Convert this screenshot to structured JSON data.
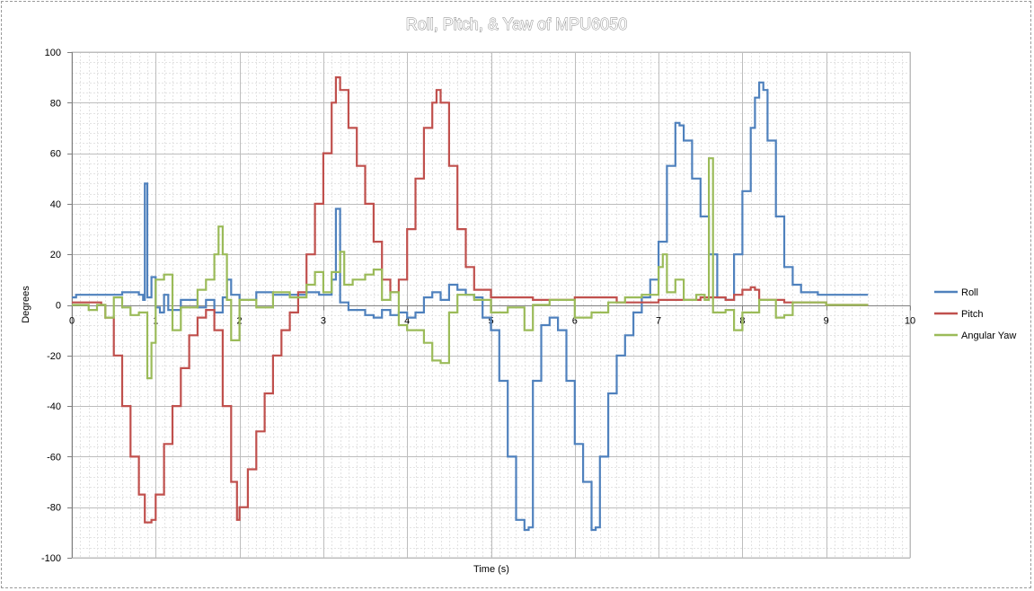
{
  "chart_data": {
    "type": "line",
    "title": "Roll, Pitch, & Yaw of MPU6050",
    "xlabel": "Time (s)",
    "ylabel": "Degrees",
    "xlim": [
      0,
      10
    ],
    "ylim": [
      -100,
      100
    ],
    "x_ticks": [
      "0",
      "1",
      "2",
      "3",
      "4",
      "5",
      "6",
      "7",
      "8",
      "9",
      "10"
    ],
    "y_ticks": [
      "-100",
      "-80",
      "-60",
      "-40",
      "-20",
      "0",
      "20",
      "40",
      "60",
      "80",
      "100"
    ],
    "grid": true,
    "minor_grid": true,
    "legend_position": "right",
    "series": [
      {
        "name": "Roll",
        "color": "#4f81bd",
        "points": [
          [
            0,
            3
          ],
          [
            0.05,
            4
          ],
          [
            0.3,
            4
          ],
          [
            0.35,
            4
          ],
          [
            0.6,
            5
          ],
          [
            0.75,
            5
          ],
          [
            0.8,
            4
          ],
          [
            0.85,
            2
          ],
          [
            0.87,
            48
          ],
          [
            0.9,
            3
          ],
          [
            0.95,
            11
          ],
          [
            1.0,
            -1
          ],
          [
            1.05,
            -3
          ],
          [
            1.1,
            4
          ],
          [
            1.15,
            -2
          ],
          [
            1.3,
            2
          ],
          [
            1.5,
            -1
          ],
          [
            1.6,
            2
          ],
          [
            1.7,
            -3
          ],
          [
            1.8,
            3
          ],
          [
            1.85,
            10
          ],
          [
            1.9,
            4
          ],
          [
            2.0,
            2
          ],
          [
            2.2,
            5
          ],
          [
            2.4,
            4
          ],
          [
            2.6,
            4
          ],
          [
            2.8,
            5
          ],
          [
            2.95,
            4
          ],
          [
            3.1,
            10
          ],
          [
            3.15,
            38
          ],
          [
            3.2,
            1
          ],
          [
            3.3,
            -2
          ],
          [
            3.5,
            -4
          ],
          [
            3.6,
            -5
          ],
          [
            3.7,
            -2
          ],
          [
            3.8,
            -4
          ],
          [
            3.9,
            -3
          ],
          [
            4.0,
            -5
          ],
          [
            4.1,
            -3
          ],
          [
            4.2,
            3
          ],
          [
            4.3,
            5
          ],
          [
            4.4,
            2
          ],
          [
            4.5,
            8
          ],
          [
            4.6,
            6
          ],
          [
            4.7,
            4
          ],
          [
            4.8,
            3
          ],
          [
            4.9,
            -5
          ],
          [
            5.0,
            -10
          ],
          [
            5.1,
            -30
          ],
          [
            5.2,
            -60
          ],
          [
            5.3,
            -85
          ],
          [
            5.4,
            -89
          ],
          [
            5.45,
            -88
          ],
          [
            5.5,
            -30
          ],
          [
            5.6,
            -8
          ],
          [
            5.7,
            -5
          ],
          [
            5.8,
            -10
          ],
          [
            5.9,
            -30
          ],
          [
            6.0,
            -55
          ],
          [
            6.1,
            -70
          ],
          [
            6.2,
            -89
          ],
          [
            6.25,
            -88
          ],
          [
            6.3,
            -60
          ],
          [
            6.4,
            -35
          ],
          [
            6.5,
            -20
          ],
          [
            6.6,
            -12
          ],
          [
            6.7,
            -3
          ],
          [
            6.8,
            3
          ],
          [
            6.9,
            10
          ],
          [
            7.0,
            25
          ],
          [
            7.1,
            55
          ],
          [
            7.2,
            72
          ],
          [
            7.25,
            71
          ],
          [
            7.3,
            65
          ],
          [
            7.4,
            50
          ],
          [
            7.5,
            35
          ],
          [
            7.6,
            20
          ],
          [
            7.7,
            3
          ],
          [
            7.8,
            2
          ],
          [
            7.9,
            20
          ],
          [
            8.0,
            45
          ],
          [
            8.1,
            70
          ],
          [
            8.15,
            82
          ],
          [
            8.2,
            88
          ],
          [
            8.25,
            85
          ],
          [
            8.3,
            65
          ],
          [
            8.4,
            35
          ],
          [
            8.5,
            15
          ],
          [
            8.6,
            8
          ],
          [
            8.7,
            5
          ],
          [
            8.9,
            4
          ],
          [
            9.2,
            4
          ],
          [
            9.5,
            4
          ]
        ]
      },
      {
        "name": "Pitch",
        "color": "#c0504d",
        "points": [
          [
            0,
            1
          ],
          [
            0.3,
            1
          ],
          [
            0.35,
            0
          ],
          [
            0.4,
            -5
          ],
          [
            0.5,
            -20
          ],
          [
            0.6,
            -40
          ],
          [
            0.7,
            -60
          ],
          [
            0.8,
            -75
          ],
          [
            0.87,
            -86
          ],
          [
            0.95,
            -85
          ],
          [
            1.0,
            -75
          ],
          [
            1.1,
            -55
          ],
          [
            1.2,
            -40
          ],
          [
            1.3,
            -25
          ],
          [
            1.4,
            -12
          ],
          [
            1.5,
            -5
          ],
          [
            1.6,
            -2
          ],
          [
            1.7,
            -10
          ],
          [
            1.8,
            -40
          ],
          [
            1.9,
            -70
          ],
          [
            1.97,
            -85
          ],
          [
            2.0,
            -80
          ],
          [
            2.1,
            -65
          ],
          [
            2.2,
            -50
          ],
          [
            2.3,
            -35
          ],
          [
            2.4,
            -20
          ],
          [
            2.5,
            -10
          ],
          [
            2.6,
            -3
          ],
          [
            2.7,
            5
          ],
          [
            2.8,
            20
          ],
          [
            2.9,
            40
          ],
          [
            3.0,
            60
          ],
          [
            3.1,
            80
          ],
          [
            3.15,
            90
          ],
          [
            3.2,
            85
          ],
          [
            3.3,
            70
          ],
          [
            3.4,
            55
          ],
          [
            3.5,
            40
          ],
          [
            3.6,
            25
          ],
          [
            3.7,
            10
          ],
          [
            3.8,
            5
          ],
          [
            3.9,
            10
          ],
          [
            4.0,
            30
          ],
          [
            4.1,
            50
          ],
          [
            4.2,
            70
          ],
          [
            4.3,
            80
          ],
          [
            4.35,
            85
          ],
          [
            4.4,
            80
          ],
          [
            4.5,
            55
          ],
          [
            4.6,
            30
          ],
          [
            4.7,
            15
          ],
          [
            4.8,
            6
          ],
          [
            5.0,
            3
          ],
          [
            5.5,
            2
          ],
          [
            6.0,
            3
          ],
          [
            6.5,
            1
          ],
          [
            7.0,
            2
          ],
          [
            7.5,
            3
          ],
          [
            7.8,
            2
          ],
          [
            7.9,
            4
          ],
          [
            8.0,
            6
          ],
          [
            8.1,
            7
          ],
          [
            8.15,
            6
          ],
          [
            8.2,
            2
          ],
          [
            8.5,
            1
          ],
          [
            9.0,
            0
          ],
          [
            9.5,
            0
          ]
        ]
      },
      {
        "name": "Angular Yaw",
        "color": "#9bbb59",
        "points": [
          [
            0,
            0
          ],
          [
            0.2,
            -2
          ],
          [
            0.3,
            0
          ],
          [
            0.4,
            -5
          ],
          [
            0.5,
            3
          ],
          [
            0.6,
            -1
          ],
          [
            0.7,
            -4
          ],
          [
            0.8,
            -3
          ],
          [
            0.9,
            -29
          ],
          [
            0.95,
            -15
          ],
          [
            1.0,
            10
          ],
          [
            1.1,
            12
          ],
          [
            1.2,
            -10
          ],
          [
            1.3,
            -1
          ],
          [
            1.5,
            6
          ],
          [
            1.6,
            10
          ],
          [
            1.7,
            20
          ],
          [
            1.75,
            31
          ],
          [
            1.8,
            20
          ],
          [
            1.85,
            2
          ],
          [
            1.9,
            -14
          ],
          [
            2.0,
            2
          ],
          [
            2.2,
            -1
          ],
          [
            2.4,
            5
          ],
          [
            2.6,
            3
          ],
          [
            2.8,
            8
          ],
          [
            2.9,
            13
          ],
          [
            3.0,
            5
          ],
          [
            3.1,
            13
          ],
          [
            3.2,
            21
          ],
          [
            3.25,
            8
          ],
          [
            3.35,
            10
          ],
          [
            3.5,
            12
          ],
          [
            3.6,
            14
          ],
          [
            3.7,
            2
          ],
          [
            3.8,
            5
          ],
          [
            3.9,
            -8
          ],
          [
            4.0,
            -10
          ],
          [
            4.2,
            -15
          ],
          [
            4.3,
            -22
          ],
          [
            4.4,
            -23
          ],
          [
            4.5,
            -3
          ],
          [
            4.6,
            4
          ],
          [
            4.8,
            2
          ],
          [
            5.0,
            -3
          ],
          [
            5.2,
            -1
          ],
          [
            5.4,
            -10
          ],
          [
            5.5,
            0
          ],
          [
            5.7,
            2
          ],
          [
            6.0,
            -5
          ],
          [
            6.2,
            -3
          ],
          [
            6.4,
            1
          ],
          [
            6.6,
            3
          ],
          [
            6.8,
            4
          ],
          [
            7.0,
            15
          ],
          [
            7.05,
            20
          ],
          [
            7.1,
            5
          ],
          [
            7.2,
            10
          ],
          [
            7.3,
            2
          ],
          [
            7.45,
            4
          ],
          [
            7.55,
            2
          ],
          [
            7.6,
            58
          ],
          [
            7.65,
            -3
          ],
          [
            7.8,
            -2
          ],
          [
            7.9,
            -10
          ],
          [
            8.0,
            -3
          ],
          [
            8.2,
            2
          ],
          [
            8.4,
            -5
          ],
          [
            8.5,
            -4
          ],
          [
            8.6,
            1
          ],
          [
            9.0,
            0
          ],
          [
            9.5,
            0
          ]
        ]
      }
    ]
  }
}
